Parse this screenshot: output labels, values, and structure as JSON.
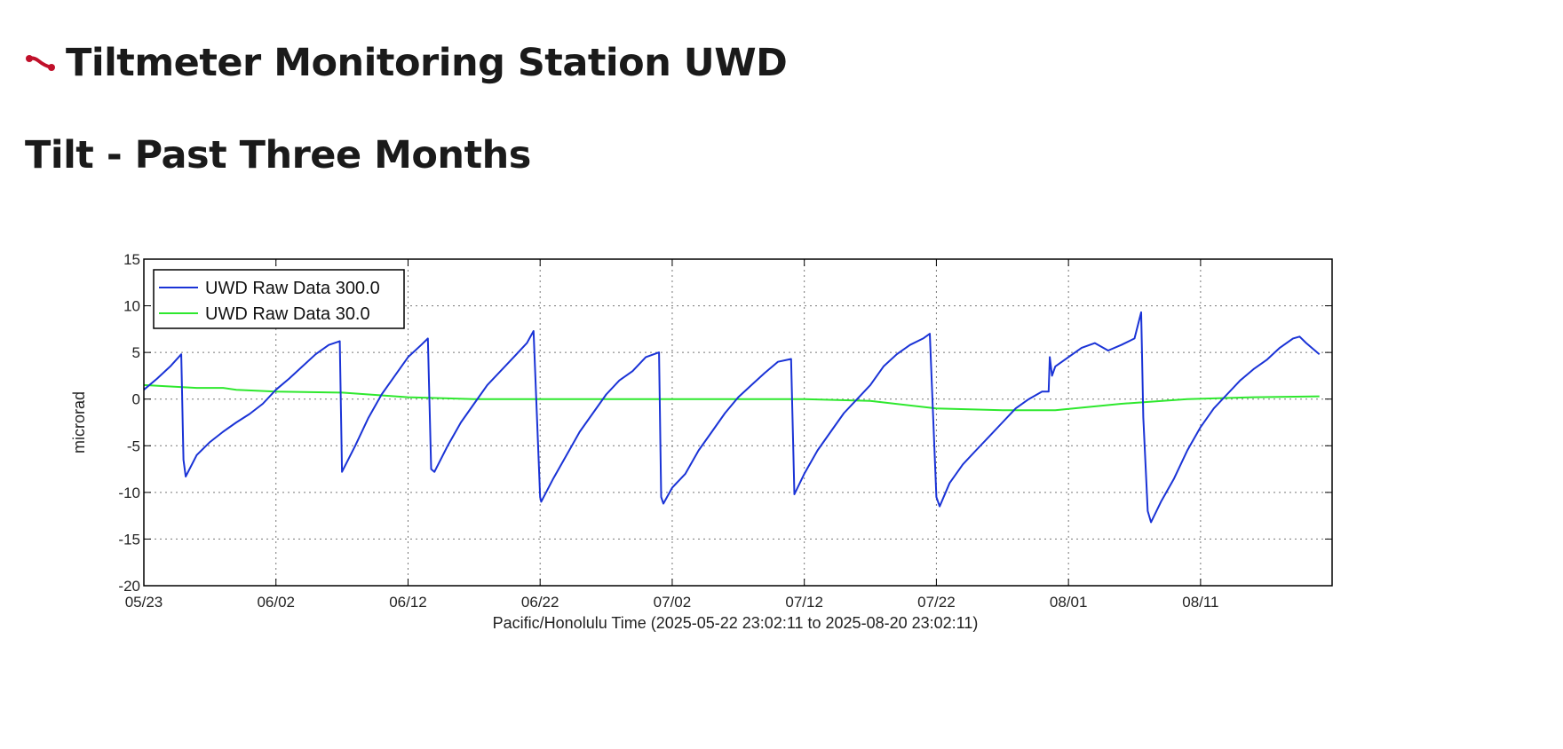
{
  "page": {
    "title": "Tiltmeter Monitoring Station UWD",
    "title_icon": "tiltmeter-icon",
    "title_icon_color": "#c0102a",
    "section_heading": "Tilt - Past Three Months"
  },
  "chart_data": {
    "type": "line",
    "title": "",
    "xlabel": "Pacific/Honolulu Time (2025-05-22 23:02:11 to 2025-08-20 23:02:11)",
    "ylabel": "microrad",
    "xlim": [
      "2025-05-23",
      "2025-08-20"
    ],
    "ylim": [
      -20,
      15
    ],
    "yticks": [
      15,
      10,
      5,
      0,
      -5,
      -10,
      -15,
      -20
    ],
    "xticks": [
      {
        "date": "2025-05-23",
        "label": "05/23"
      },
      {
        "date": "2025-06-02",
        "label": "06/02"
      },
      {
        "date": "2025-06-12",
        "label": "06/12"
      },
      {
        "date": "2025-06-22",
        "label": "06/22"
      },
      {
        "date": "2025-07-02",
        "label": "07/02"
      },
      {
        "date": "2025-07-12",
        "label": "07/12"
      },
      {
        "date": "2025-07-22",
        "label": "07/22"
      },
      {
        "date": "2025-08-01",
        "label": "08/01"
      },
      {
        "date": "2025-08-11",
        "label": "08/11"
      }
    ],
    "grid": true,
    "legend_position": "top-left",
    "series": [
      {
        "name": "UWD Raw Data 300.0",
        "color": "#1a33d6",
        "points": [
          [
            "2025-05-23",
            1.0
          ],
          [
            "2025-05-24",
            2.2
          ],
          [
            "2025-05-25",
            3.5
          ],
          [
            "2025-05-25T20:00",
            4.8
          ],
          [
            "2025-05-26",
            -6.5
          ],
          [
            "2025-05-26T04:00",
            -8.3
          ],
          [
            "2025-05-27",
            -6.0
          ],
          [
            "2025-05-28",
            -4.6
          ],
          [
            "2025-05-29",
            -3.5
          ],
          [
            "2025-05-30",
            -2.5
          ],
          [
            "2025-05-31",
            -1.6
          ],
          [
            "2025-06-01",
            -0.5
          ],
          [
            "2025-06-02",
            1.0
          ],
          [
            "2025-06-03",
            2.2
          ],
          [
            "2025-06-04",
            3.5
          ],
          [
            "2025-06-05",
            4.8
          ],
          [
            "2025-06-06",
            5.8
          ],
          [
            "2025-06-06T20:00",
            6.2
          ],
          [
            "2025-06-07",
            -7.8
          ],
          [
            "2025-06-08",
            -5.0
          ],
          [
            "2025-06-09",
            -2.0
          ],
          [
            "2025-06-10",
            0.5
          ],
          [
            "2025-06-11",
            2.5
          ],
          [
            "2025-06-12",
            4.5
          ],
          [
            "2025-06-13",
            5.8
          ],
          [
            "2025-06-13T12:00",
            6.5
          ],
          [
            "2025-06-13T18:00",
            -7.5
          ],
          [
            "2025-06-14",
            -7.8
          ],
          [
            "2025-06-15",
            -5.0
          ],
          [
            "2025-06-16",
            -2.5
          ],
          [
            "2025-06-17",
            -0.5
          ],
          [
            "2025-06-18",
            1.5
          ],
          [
            "2025-06-19",
            3.0
          ],
          [
            "2025-06-20",
            4.5
          ],
          [
            "2025-06-21",
            6.0
          ],
          [
            "2025-06-21T12:00",
            7.3
          ],
          [
            "2025-06-22",
            -10.5
          ],
          [
            "2025-06-22T02:00",
            -11.0
          ],
          [
            "2025-06-23",
            -8.5
          ],
          [
            "2025-06-24",
            -6.0
          ],
          [
            "2025-06-25",
            -3.5
          ],
          [
            "2025-06-26",
            -1.5
          ],
          [
            "2025-06-27",
            0.5
          ],
          [
            "2025-06-28",
            2.0
          ],
          [
            "2025-06-29",
            3.0
          ],
          [
            "2025-06-30",
            4.5
          ],
          [
            "2025-07-01",
            5.0
          ],
          [
            "2025-07-01T04:00",
            -10.5
          ],
          [
            "2025-07-01T08:00",
            -11.2
          ],
          [
            "2025-07-02",
            -9.5
          ],
          [
            "2025-07-03",
            -8.0
          ],
          [
            "2025-07-04",
            -5.5
          ],
          [
            "2025-07-05",
            -3.5
          ],
          [
            "2025-07-06",
            -1.5
          ],
          [
            "2025-07-07",
            0.2
          ],
          [
            "2025-07-08",
            1.5
          ],
          [
            "2025-07-09",
            2.8
          ],
          [
            "2025-07-10",
            4.0
          ],
          [
            "2025-07-11",
            4.3
          ],
          [
            "2025-07-11T06:00",
            -10.2
          ],
          [
            "2025-07-12",
            -8.0
          ],
          [
            "2025-07-13",
            -5.5
          ],
          [
            "2025-07-14",
            -3.5
          ],
          [
            "2025-07-15",
            -1.5
          ],
          [
            "2025-07-16",
            0.0
          ],
          [
            "2025-07-17",
            1.5
          ],
          [
            "2025-07-18",
            3.5
          ],
          [
            "2025-07-19",
            4.8
          ],
          [
            "2025-07-20",
            5.8
          ],
          [
            "2025-07-21",
            6.5
          ],
          [
            "2025-07-21T12:00",
            7.0
          ],
          [
            "2025-07-22",
            -10.5
          ],
          [
            "2025-07-22T06:00",
            -11.5
          ],
          [
            "2025-07-23",
            -9.0
          ],
          [
            "2025-07-24",
            -7.0
          ],
          [
            "2025-07-25",
            -5.5
          ],
          [
            "2025-07-26",
            -4.0
          ],
          [
            "2025-07-27",
            -2.5
          ],
          [
            "2025-07-28",
            -1.0
          ],
          [
            "2025-07-29",
            0.0
          ],
          [
            "2025-07-30",
            0.8
          ],
          [
            "2025-07-30T12:00",
            0.8
          ],
          [
            "2025-07-30T14:00",
            4.5
          ],
          [
            "2025-07-30T18:00",
            2.5
          ],
          [
            "2025-07-31",
            3.5
          ],
          [
            "2025-08-01",
            4.5
          ],
          [
            "2025-08-02",
            5.5
          ],
          [
            "2025-08-03",
            6.0
          ],
          [
            "2025-08-04",
            5.2
          ],
          [
            "2025-08-05",
            5.8
          ],
          [
            "2025-08-06",
            6.5
          ],
          [
            "2025-08-06T12:00",
            9.3
          ],
          [
            "2025-08-06T16:00",
            -2.0
          ],
          [
            "2025-08-07",
            -12.0
          ],
          [
            "2025-08-07T06:00",
            -13.2
          ],
          [
            "2025-08-08",
            -11.0
          ],
          [
            "2025-08-09",
            -8.5
          ],
          [
            "2025-08-10",
            -5.5
          ],
          [
            "2025-08-11",
            -3.0
          ],
          [
            "2025-08-12",
            -1.0
          ],
          [
            "2025-08-13",
            0.5
          ],
          [
            "2025-08-14",
            2.0
          ],
          [
            "2025-08-15",
            3.2
          ],
          [
            "2025-08-16",
            4.2
          ],
          [
            "2025-08-17",
            5.5
          ],
          [
            "2025-08-18",
            6.5
          ],
          [
            "2025-08-18T12:00",
            6.7
          ],
          [
            "2025-08-19",
            6.0
          ],
          [
            "2025-08-20",
            4.8
          ]
        ]
      },
      {
        "name": "UWD Raw Data 30.0",
        "color": "#2ee82e",
        "points": [
          [
            "2025-05-23",
            1.5
          ],
          [
            "2025-05-27",
            1.2
          ],
          [
            "2025-05-29",
            1.2
          ],
          [
            "2025-05-30",
            1.0
          ],
          [
            "2025-06-02",
            0.8
          ],
          [
            "2025-06-07",
            0.7
          ],
          [
            "2025-06-12",
            0.2
          ],
          [
            "2025-06-17",
            0.0
          ],
          [
            "2025-06-22",
            0.0
          ],
          [
            "2025-06-27",
            0.0
          ],
          [
            "2025-07-02",
            0.0
          ],
          [
            "2025-07-07",
            0.0
          ],
          [
            "2025-07-12",
            0.0
          ],
          [
            "2025-07-17",
            -0.2
          ],
          [
            "2025-07-22",
            -1.0
          ],
          [
            "2025-07-27",
            -1.2
          ],
          [
            "2025-07-31",
            -1.2
          ],
          [
            "2025-08-05",
            -0.5
          ],
          [
            "2025-08-10",
            0.0
          ],
          [
            "2025-08-15",
            0.2
          ],
          [
            "2025-08-20",
            0.3
          ]
        ]
      }
    ]
  }
}
